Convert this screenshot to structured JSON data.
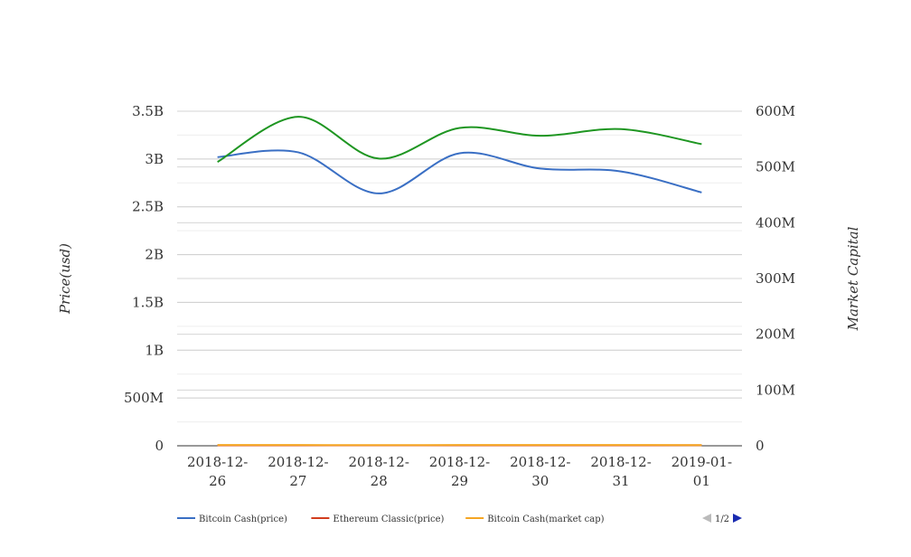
{
  "chart_data": {
    "type": "line",
    "x": [
      "2018-12-26",
      "2018-12-27",
      "2018-12-28",
      "2018-12-29",
      "2018-12-30",
      "2018-12-31",
      "2019-01-01"
    ],
    "x_tick_lines": [
      [
        "2018-12-",
        "26"
      ],
      [
        "2018-12-",
        "27"
      ],
      [
        "2018-12-",
        "28"
      ],
      [
        "2018-12-",
        "29"
      ],
      [
        "2018-12-",
        "30"
      ],
      [
        "2018-12-",
        "31"
      ],
      [
        "2019-01-",
        "01"
      ]
    ],
    "ylabel": "Price(usd)",
    "y2label": "Market Capital",
    "ylim": [
      0,
      3500000000
    ],
    "y2lim": [
      0,
      600000000
    ],
    "y_ticks": [
      {
        "v": 0,
        "label": "0"
      },
      {
        "v": 500000000,
        "label": "500M"
      },
      {
        "v": 1000000000,
        "label": "1B"
      },
      {
        "v": 1500000000,
        "label": "1.5B"
      },
      {
        "v": 2000000000,
        "label": "2B"
      },
      {
        "v": 2500000000,
        "label": "2.5B"
      },
      {
        "v": 3000000000,
        "label": "3B"
      },
      {
        "v": 3500000000,
        "label": "3.5B"
      }
    ],
    "y2_ticks": [
      {
        "v": 0,
        "label": "0"
      },
      {
        "v": 100000000,
        "label": "100M"
      },
      {
        "v": 200000000,
        "label": "200M"
      },
      {
        "v": 300000000,
        "label": "300M"
      },
      {
        "v": 400000000,
        "label": "400M"
      },
      {
        "v": 500000000,
        "label": "500M"
      },
      {
        "v": 600000000,
        "label": "600M"
      }
    ],
    "series": [
      {
        "name": "Bitcoin Cash(price)",
        "color": "#3a6fc4",
        "axis": "left",
        "visible": true,
        "values": [
          3020000000,
          3070000000,
          2640000000,
          3060000000,
          2900000000,
          2870000000,
          2650000000
        ]
      },
      {
        "name": "Ethereum Classic(price)",
        "color": "#d23d1e",
        "axis": "left",
        "visible": true,
        "values": [
          5000000,
          5000000,
          4500000,
          5200000,
          5000000,
          5000000,
          5500000
        ]
      },
      {
        "name": "Bitcoin Cash(market cap)",
        "color": "#f5a623",
        "axis": "left",
        "visible": true,
        "values": [
          8000000,
          8000000,
          7000000,
          8000000,
          8000000,
          8000000,
          7500000
        ]
      },
      {
        "name": "",
        "color": "#1f9622",
        "axis": "right",
        "visible": true,
        "values": [
          509000000,
          590000000,
          515000000,
          570000000,
          556000000,
          568000000,
          541000000
        ]
      }
    ],
    "grid": true,
    "legend_position": "bottom",
    "pager": {
      "label": "1/2"
    }
  }
}
